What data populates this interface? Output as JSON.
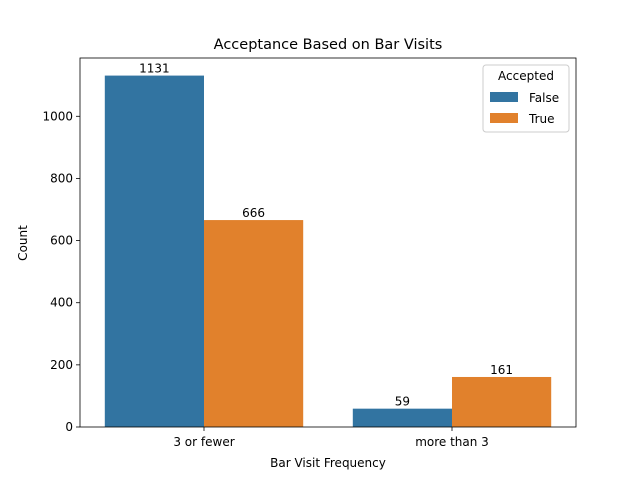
{
  "chart_data": {
    "type": "bar",
    "title": "Acceptance Based on Bar Visits",
    "xlabel": "Bar Visit Frequency",
    "ylabel": "Count",
    "categories": [
      "3 or fewer",
      "more than 3"
    ],
    "series": [
      {
        "name": "False",
        "values": [
          1131,
          59
        ],
        "color": "#3274a1"
      },
      {
        "name": "True",
        "values": [
          666,
          161
        ],
        "color": "#e1812c"
      }
    ],
    "ylim": [
      0,
      1187.6
    ],
    "yticks": [
      0,
      200,
      400,
      600,
      800,
      1000
    ],
    "legend": {
      "title": "Accepted",
      "placement": "top-right"
    },
    "grid": false
  }
}
